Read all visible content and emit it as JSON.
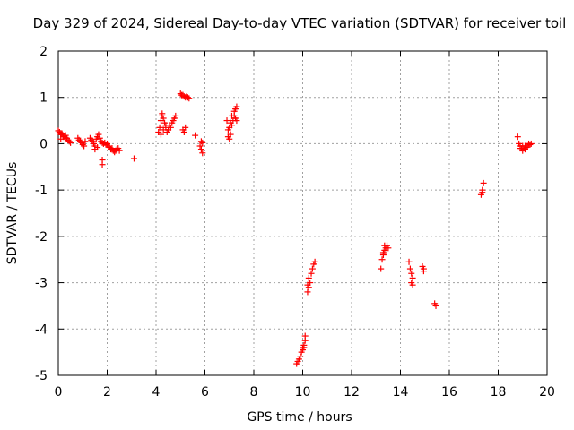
{
  "chart_data": {
    "type": "scatter",
    "title": "Day 329 of 2024, Sidereal Day-to-day VTEC variation (SDTVAR) for receiver toil",
    "xlabel": "GPS time / hours",
    "ylabel": "SDTVAR / TECUs",
    "xlim": [
      0,
      20
    ],
    "ylim": [
      -5,
      2
    ],
    "xticks": [
      0,
      2,
      4,
      6,
      8,
      10,
      12,
      14,
      16,
      18,
      20
    ],
    "yticks": [
      2,
      1,
      0,
      -1,
      -2,
      -3,
      -4,
      -5
    ],
    "xtick_labels": [
      "0",
      "2",
      "4",
      "6",
      "8",
      "10",
      "12",
      "14",
      "16",
      "18",
      "20"
    ],
    "ytick_labels": [
      "2",
      "1",
      "0",
      "-1",
      "-2",
      "-3",
      "-4",
      "-5"
    ],
    "grid": true,
    "marker": "+",
    "color": "#ff0000",
    "series": [
      {
        "name": "SDTVAR",
        "x": [
          0.0,
          0.05,
          0.1,
          0.15,
          0.2,
          0.25,
          0.3,
          0.35,
          0.4,
          0.45,
          0.5,
          0.1,
          0.2,
          0.3,
          0.8,
          0.85,
          0.9,
          0.95,
          1.0,
          1.05,
          1.1,
          1.3,
          1.35,
          1.4,
          1.45,
          1.5,
          1.55,
          1.6,
          1.65,
          1.7,
          1.75,
          1.8,
          1.85,
          1.9,
          1.95,
          2.0,
          2.05,
          2.1,
          2.15,
          2.2,
          2.25,
          2.3,
          2.35,
          2.4,
          2.45,
          2.5,
          1.5,
          1.6,
          1.8,
          1.8,
          3.1,
          4.1,
          4.15,
          4.2,
          4.25,
          4.3,
          4.35,
          4.4,
          4.45,
          4.5,
          4.55,
          4.6,
          4.65,
          4.7,
          4.75,
          4.8,
          4.2,
          4.3,
          4.4,
          4.25,
          5.0,
          5.05,
          5.1,
          5.15,
          5.2,
          5.25,
          5.3,
          5.35,
          5.1,
          5.15,
          5.2,
          5.6,
          5.8,
          5.85,
          5.9,
          5.85,
          5.9,
          6.9,
          6.95,
          7.0,
          7.05,
          7.1,
          7.15,
          7.2,
          7.25,
          7.3,
          7.0,
          7.05,
          7.1,
          7.2,
          7.25,
          7.3,
          6.95,
          9.75,
          9.8,
          9.85,
          9.9,
          9.95,
          10.0,
          10.05,
          10.1,
          10.0,
          10.05,
          10.1,
          10.2,
          10.25,
          10.3,
          10.35,
          10.4,
          10.45,
          10.5,
          10.2,
          10.25,
          13.2,
          13.25,
          13.3,
          13.35,
          13.4,
          13.45,
          13.5,
          13.3,
          13.35,
          14.35,
          14.4,
          14.45,
          14.5,
          14.45,
          14.5,
          14.9,
          14.95,
          14.95,
          15.4,
          15.45,
          17.3,
          17.35,
          17.4,
          17.35,
          18.8,
          18.85,
          18.9,
          18.95,
          19.0,
          19.05,
          19.1,
          19.15,
          19.2,
          19.25,
          19.3,
          19.35,
          18.9,
          19.0,
          19.1
        ],
        "y": [
          0.28,
          0.25,
          0.2,
          0.22,
          0.18,
          0.15,
          0.18,
          0.12,
          0.08,
          0.05,
          0.02,
          0.1,
          0.15,
          0.12,
          0.12,
          0.08,
          0.05,
          0.02,
          -0.02,
          -0.05,
          0.05,
          0.12,
          0.08,
          0.05,
          0.0,
          -0.05,
          0.1,
          0.15,
          0.2,
          0.12,
          0.05,
          0.02,
          0.0,
          0.02,
          -0.02,
          0.0,
          -0.05,
          -0.08,
          -0.12,
          -0.1,
          -0.15,
          -0.18,
          -0.15,
          -0.12,
          -0.1,
          -0.15,
          -0.12,
          -0.08,
          -0.35,
          -0.45,
          -0.32,
          0.25,
          0.35,
          0.5,
          0.65,
          0.55,
          0.45,
          0.35,
          0.25,
          0.3,
          0.4,
          0.35,
          0.45,
          0.5,
          0.55,
          0.6,
          0.2,
          0.3,
          0.4,
          0.6,
          1.08,
          1.05,
          1.05,
          1.02,
          1.0,
          1.02,
          1.0,
          0.98,
          0.3,
          0.25,
          0.35,
          0.18,
          -0.05,
          -0.12,
          -0.2,
          0.05,
          0.02,
          0.5,
          0.3,
          0.1,
          0.2,
          0.4,
          0.5,
          0.6,
          0.55,
          0.8,
          0.35,
          0.45,
          0.6,
          0.7,
          0.75,
          0.5,
          0.15,
          -4.75,
          -4.7,
          -4.65,
          -4.6,
          -4.5,
          -4.45,
          -4.4,
          -4.25,
          -4.4,
          -4.35,
          -4.15,
          -3.2,
          -3.1,
          -3.0,
          -2.8,
          -2.7,
          -2.6,
          -2.55,
          -3.05,
          -2.9,
          -2.7,
          -2.5,
          -2.4,
          -2.3,
          -2.25,
          -2.2,
          -2.25,
          -2.35,
          -2.2,
          -2.55,
          -2.7,
          -2.8,
          -2.9,
          -3.0,
          -3.05,
          -2.65,
          -2.7,
          -2.75,
          -3.45,
          -3.5,
          -1.1,
          -1.0,
          -0.85,
          -1.05,
          0.15,
          0.0,
          -0.05,
          -0.1,
          -0.15,
          -0.1,
          -0.05,
          -0.08,
          -0.05,
          0.0,
          -0.02,
          0.0,
          -0.1,
          -0.05,
          -0.12
        ]
      }
    ]
  }
}
